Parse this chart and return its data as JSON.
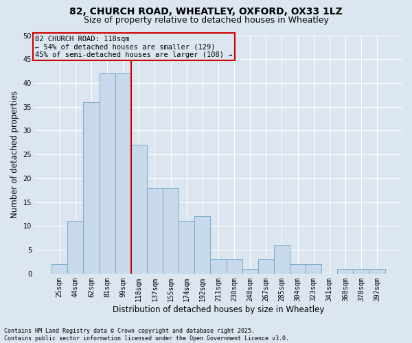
{
  "title1": "82, CHURCH ROAD, WHEATLEY, OXFORD, OX33 1LZ",
  "title2": "Size of property relative to detached houses in Wheatley",
  "xlabel": "Distribution of detached houses by size in Wheatley",
  "ylabel": "Number of detached properties",
  "bin_labels": [
    "25sqm",
    "44sqm",
    "62sqm",
    "81sqm",
    "99sqm",
    "118sqm",
    "137sqm",
    "155sqm",
    "174sqm",
    "192sqm",
    "211sqm",
    "230sqm",
    "248sqm",
    "267sqm",
    "285sqm",
    "304sqm",
    "323sqm",
    "341sqm",
    "360sqm",
    "378sqm",
    "397sqm"
  ],
  "bar_values": [
    2,
    11,
    36,
    42,
    42,
    27,
    18,
    18,
    11,
    12,
    3,
    3,
    1,
    3,
    6,
    2,
    2,
    0,
    1,
    1,
    1
  ],
  "bar_color": "#c8d9eb",
  "bar_edge_color": "#7aaac8",
  "vline_color": "#cc0000",
  "vline_x_idx": 5,
  "annotation_text": "82 CHURCH ROAD: 118sqm\n← 54% of detached houses are smaller (129)\n45% of semi-detached houses are larger (108) →",
  "annotation_box_color": "#cc0000",
  "bg_color": "#dce6f0",
  "grid_color": "#ffffff",
  "ylim": [
    0,
    50
  ],
  "yticks": [
    0,
    5,
    10,
    15,
    20,
    25,
    30,
    35,
    40,
    45,
    50
  ],
  "footnote": "Contains HM Land Registry data © Crown copyright and database right 2025.\nContains public sector information licensed under the Open Government Licence v3.0.",
  "title_fontsize": 10,
  "subtitle_fontsize": 9,
  "label_fontsize": 8.5,
  "tick_fontsize": 7,
  "annot_fontsize": 7.5
}
